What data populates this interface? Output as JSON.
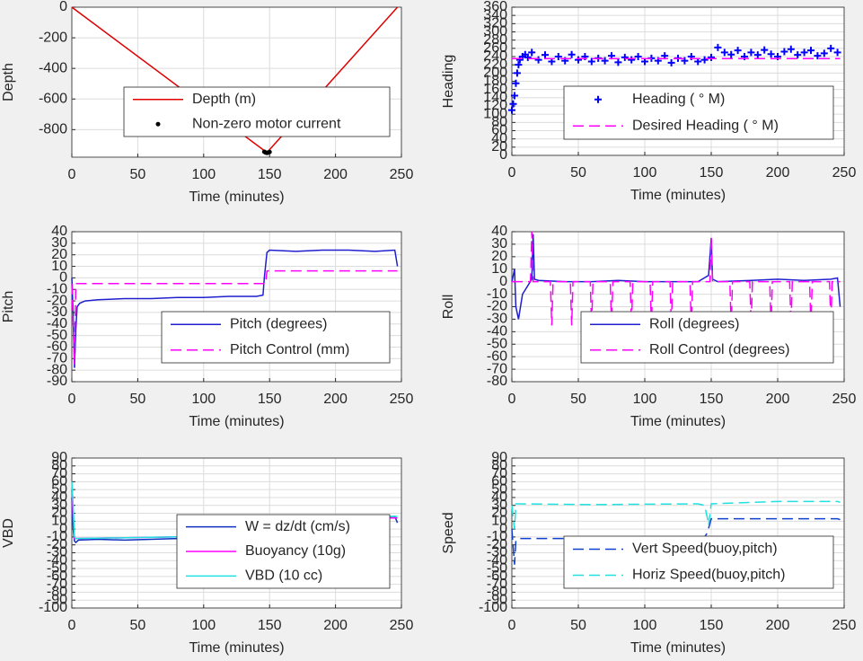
{
  "chart_data": [
    {
      "type": "line",
      "xlabel": "Time (minutes)",
      "ylabel": "Depth",
      "xlim": [
        0,
        250
      ],
      "xticks": [
        0,
        50,
        100,
        150,
        200,
        250
      ],
      "ylim": [
        -980,
        0
      ],
      "yticks": [
        0,
        -200,
        -400,
        -600,
        -800
      ],
      "grid": true,
      "series": [
        {
          "name": "Depth (m)",
          "color": "#e00000",
          "linestyle": "solid",
          "x": [
            0,
            148,
            247
          ],
          "values": [
            0,
            -950,
            0
          ]
        },
        {
          "name": "Non-zero motor current",
          "color": "#000000",
          "linestyle": "none",
          "marker": ".",
          "x": [
            146,
            147,
            148,
            149,
            150
          ],
          "values": [
            -945,
            -950,
            -952,
            -950,
            -946
          ]
        }
      ]
    },
    {
      "type": "line",
      "xlabel": "Time (minutes)",
      "ylabel": "Heading",
      "xlim": [
        0,
        250
      ],
      "xticks": [
        0,
        50,
        100,
        150,
        200,
        250
      ],
      "ylim": [
        0,
        360
      ],
      "yticks": [
        0,
        20,
        40,
        60,
        80,
        100,
        120,
        140,
        160,
        180,
        200,
        220,
        240,
        260,
        280,
        300,
        320,
        340,
        360
      ],
      "grid": true,
      "series": [
        {
          "name": "Heading ( ° M)",
          "color": "#0000ff",
          "linestyle": "none",
          "marker": "+",
          "x": [
            0,
            1,
            2,
            3,
            4,
            5,
            6,
            8,
            10,
            12,
            15,
            20,
            25,
            30,
            35,
            40,
            45,
            50,
            55,
            60,
            65,
            70,
            75,
            80,
            85,
            90,
            95,
            100,
            105,
            110,
            115,
            120,
            125,
            130,
            135,
            140,
            145,
            150,
            155,
            160,
            165,
            170,
            175,
            180,
            185,
            190,
            195,
            200,
            205,
            210,
            215,
            220,
            225,
            230,
            235,
            240,
            245
          ],
          "values": [
            110,
            125,
            145,
            175,
            200,
            220,
            232,
            240,
            245,
            238,
            250,
            232,
            244,
            228,
            240,
            230,
            245,
            232,
            240,
            228,
            236,
            230,
            242,
            226,
            238,
            232,
            240,
            228,
            236,
            230,
            242,
            225,
            236,
            230,
            240,
            228,
            232,
            238,
            262,
            250,
            245,
            255,
            240,
            250,
            244,
            256,
            246,
            240,
            252,
            258,
            244,
            250,
            255,
            242,
            248,
            260,
            250
          ]
        },
        {
          "name": "Desired Heading ( ° M)",
          "color": "#ff00ff",
          "linestyle": "dashed",
          "x": [
            0,
            247
          ],
          "values": [
            235,
            235
          ]
        }
      ]
    },
    {
      "type": "line",
      "xlabel": "Time (minutes)",
      "ylabel": "Pitch",
      "xlim": [
        0,
        250
      ],
      "xticks": [
        0,
        50,
        100,
        150,
        200,
        250
      ],
      "ylim": [
        -90,
        40
      ],
      "yticks": [
        40,
        30,
        20,
        10,
        0,
        -10,
        -20,
        -30,
        -40,
        -50,
        -60,
        -70,
        -80,
        -90
      ],
      "grid": true,
      "series": [
        {
          "name": "Pitch (degrees)",
          "color": "#1f1fd0",
          "linestyle": "solid",
          "x": [
            0,
            1,
            2,
            3,
            4,
            6,
            10,
            20,
            40,
            60,
            80,
            100,
            120,
            140,
            145,
            146,
            148,
            150,
            170,
            190,
            210,
            230,
            245,
            247
          ],
          "values": [
            0,
            -30,
            -78,
            -45,
            -25,
            -22,
            -20,
            -19,
            -18,
            -18,
            -17,
            -17,
            -16,
            -16,
            -15,
            0,
            22,
            24,
            23,
            24,
            24,
            23,
            24,
            10
          ]
        },
        {
          "name": "Pitch Control (mm)",
          "color": "#ff00ff",
          "linestyle": "dashed",
          "x": [
            0,
            2,
            3,
            147,
            148,
            247
          ],
          "values": [
            -5,
            -75,
            -5,
            -5,
            6,
            6
          ]
        }
      ]
    },
    {
      "type": "line",
      "xlabel": "Time (minutes)",
      "ylabel": "Roll",
      "xlim": [
        0,
        250
      ],
      "xticks": [
        0,
        50,
        100,
        150,
        200,
        250
      ],
      "ylim": [
        -80,
        40
      ],
      "yticks": [
        40,
        30,
        20,
        10,
        0,
        -10,
        -20,
        -30,
        -40,
        -50,
        -60,
        -70,
        -80
      ],
      "grid": true,
      "series": [
        {
          "name": "Roll (degrees)",
          "color": "#1f1fd0",
          "linestyle": "solid",
          "x": [
            0,
            2,
            3,
            5,
            8,
            15,
            16,
            17,
            20,
            40,
            60,
            80,
            100,
            120,
            140,
            148,
            150,
            151,
            155,
            180,
            200,
            220,
            240,
            245,
            247
          ],
          "values": [
            0,
            10,
            -20,
            -30,
            -10,
            2,
            38,
            2,
            1,
            0,
            0,
            1,
            0,
            0,
            0,
            5,
            35,
            2,
            0,
            1,
            2,
            1,
            2,
            3,
            -20
          ]
        },
        {
          "name": "Roll Control (degrees)",
          "color": "#ff00ff",
          "linestyle": "dashed",
          "x": [
            0,
            14,
            15,
            16,
            29,
            30,
            31,
            44,
            45,
            46,
            59,
            60,
            61,
            74,
            75,
            76,
            89,
            90,
            91,
            104,
            105,
            106,
            119,
            120,
            121,
            134,
            135,
            136,
            149,
            150,
            151,
            164,
            165,
            166,
            179,
            180,
            181,
            194,
            195,
            196,
            209,
            210,
            211,
            224,
            225,
            226,
            239,
            240,
            241,
            247
          ],
          "values": [
            0,
            0,
            40,
            0,
            0,
            -35,
            0,
            0,
            -35,
            0,
            0,
            -35,
            0,
            0,
            -35,
            0,
            0,
            -35,
            0,
            0,
            -35,
            0,
            0,
            -35,
            0,
            0,
            -35,
            0,
            0,
            35,
            0,
            0,
            -35,
            0,
            0,
            -35,
            0,
            0,
            -35,
            0,
            0,
            -35,
            0,
            0,
            -35,
            0,
            0,
            -35,
            0,
            0
          ]
        }
      ]
    },
    {
      "type": "line",
      "xlabel": "Time (minutes)",
      "ylabel": "VBD",
      "xlim": [
        0,
        250
      ],
      "xticks": [
        0,
        50,
        100,
        150,
        200,
        250
      ],
      "ylim": [
        -100,
        90
      ],
      "yticks": [
        90,
        80,
        70,
        60,
        50,
        40,
        30,
        20,
        10,
        0,
        -10,
        -20,
        -30,
        -40,
        -50,
        -60,
        -70,
        -80,
        -90,
        -100
      ],
      "grid": true,
      "series": [
        {
          "name": "W = dz/dt (cm/s)",
          "color": "#1030c0",
          "linestyle": "solid",
          "x": [
            0,
            1,
            2,
            3,
            5,
            20,
            40,
            60,
            80,
            100,
            120,
            140,
            145,
            148,
            150,
            170,
            190,
            210,
            230,
            245,
            247
          ],
          "values": [
            40,
            0,
            -15,
            -17,
            -14,
            -13,
            -14,
            -13,
            -12,
            -13,
            -12,
            -11,
            -10,
            5,
            15,
            16,
            15,
            16,
            15,
            16,
            8
          ]
        },
        {
          "name": "Buoyancy (10g)",
          "color": "#ff00ff",
          "linestyle": "solid",
          "x": [
            0,
            2,
            3,
            146,
            150,
            247
          ],
          "values": [
            50,
            -12,
            -12,
            -8,
            14,
            14
          ]
        },
        {
          "name": "VBD (10 cc)",
          "color": "#20e0e0",
          "linestyle": "solid",
          "x": [
            0,
            1,
            2,
            3,
            146,
            150,
            247
          ],
          "values": [
            60,
            30,
            -10,
            -12,
            -8,
            16,
            16
          ]
        }
      ]
    },
    {
      "type": "line",
      "xlabel": "Time (minutes)",
      "ylabel": "Speed",
      "xlim": [
        0,
        250
      ],
      "xticks": [
        0,
        50,
        100,
        150,
        200,
        250
      ],
      "ylim": [
        -100,
        90
      ],
      "yticks": [
        90,
        80,
        70,
        60,
        50,
        40,
        30,
        20,
        10,
        0,
        -10,
        -20,
        -30,
        -40,
        -50,
        -60,
        -70,
        -80,
        -90,
        -100
      ],
      "grid": true,
      "series": [
        {
          "name": "Vert Speed(buoy,pitch)",
          "color": "#1040d0",
          "linestyle": "dashed",
          "x": [
            0,
            2,
            3,
            5,
            20,
            60,
            100,
            140,
            145,
            147,
            150,
            200,
            245,
            247
          ],
          "values": [
            0,
            -45,
            -15,
            -12,
            -12,
            -12,
            -11,
            -11,
            -10,
            -5,
            13,
            13,
            13,
            12
          ]
        },
        {
          "name": "Horiz Speed(buoy,pitch)",
          "color": "#20e0e0",
          "linestyle": "dashed",
          "x": [
            0,
            2,
            3,
            5,
            60,
            140,
            145,
            147,
            148,
            150,
            200,
            245,
            247
          ],
          "values": [
            30,
            0,
            32,
            32,
            31,
            32,
            30,
            15,
            5,
            32,
            35,
            35,
            34
          ]
        }
      ]
    }
  ]
}
